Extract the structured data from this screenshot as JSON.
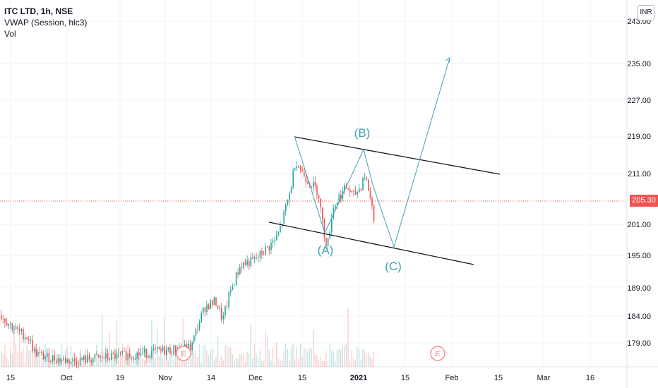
{
  "legend": {
    "symbol": "ITC LTD, 1h, NSE",
    "vwap": "VWAP (Session, hlc3)",
    "vol": "Vol"
  },
  "currency": "INR",
  "last_price": "205.30",
  "colors": {
    "up": "#26a69a",
    "down": "#ef5350",
    "wave": "#3fa1b4",
    "channel": "#131722",
    "grid": "#f0f3fa",
    "earnings": "#f27c7c"
  },
  "chart_data": {
    "type": "candlestick",
    "price_ticks": [
      "179.00",
      "184.00",
      "189.00",
      "195.00",
      "201.00",
      "205.30",
      "211.00",
      "219.00",
      "227.00",
      "235.00",
      "243.00"
    ],
    "time_ticks": [
      "15",
      "Oct",
      "19",
      "Nov",
      "14",
      "Dec",
      "15",
      "2021",
      "15",
      "Feb",
      "15",
      "Mar",
      "16"
    ],
    "wave_labels": [
      "(A)",
      "(B)",
      "(C)"
    ],
    "earnings_markers": [
      "E",
      "E"
    ],
    "last_price": 205.3
  }
}
